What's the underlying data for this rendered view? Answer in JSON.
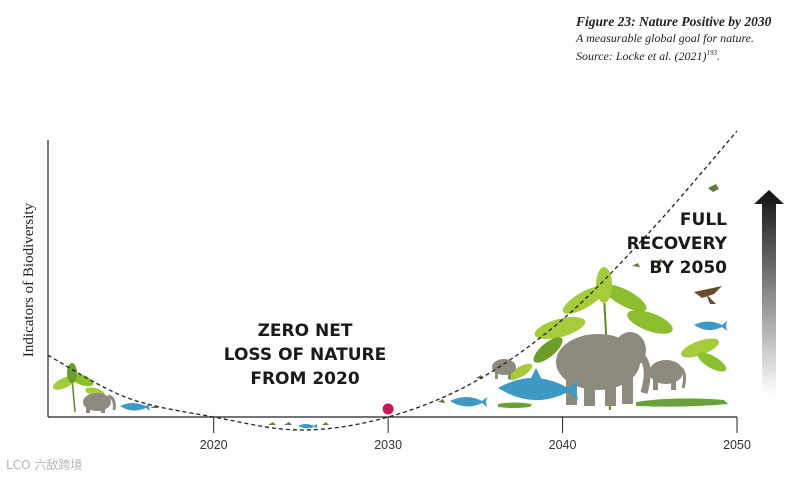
{
  "caption": {
    "title": "Figure 23: Nature Positive by 2030",
    "subtitle": "A measurable global goal for nature. Source: Locke et al. (2021)",
    "subtitle_sup": "193",
    "subtitle_end": "."
  },
  "chart_data": {
    "type": "line",
    "title": "",
    "xlabel": "",
    "ylabel": "Indicators of Biodiversity",
    "x_ticks": [
      2020,
      2030,
      2040,
      2050
    ],
    "xlim": [
      2010.5,
      2050
    ],
    "curve": {
      "style": "dashed",
      "x": [
        2010.5,
        2015,
        2020,
        2025,
        2030,
        2035,
        2040,
        2045,
        2050
      ],
      "y": [
        19,
        6,
        0,
        -4,
        0,
        11,
        30,
        57,
        88
      ]
    },
    "marker": {
      "x": 2030,
      "y": 0,
      "color": "#c8185a"
    },
    "annotations": [
      {
        "lines": [
          "ZERO NET",
          "LOSS OF NATURE",
          "FROM 2020"
        ]
      },
      {
        "lines": [
          "FULL",
          "RECOVERY",
          "BY 2050"
        ]
      }
    ],
    "arrow": {
      "direction": "up",
      "gradient": [
        "#111111",
        "#ffffff"
      ]
    }
  },
  "colors": {
    "green_light": "#a6cc3c",
    "green_dark": "#5f8a2a",
    "animal_grey": "#8e8a7e",
    "shark_blue": "#3e9ac4",
    "croc_green": "#6aa13a"
  },
  "watermark": "LCO 六敌跨境"
}
